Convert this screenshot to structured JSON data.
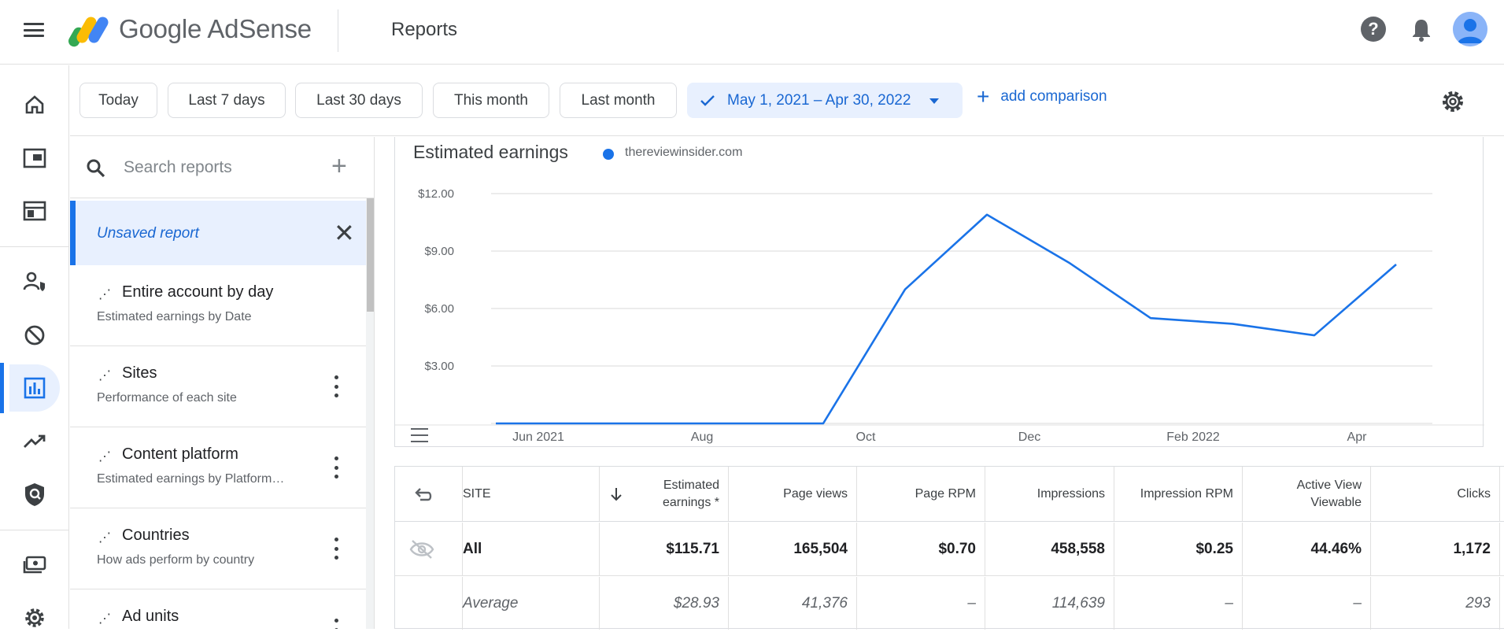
{
  "app": {
    "brand": "Google AdSense",
    "page_title": "Reports"
  },
  "rail": {
    "items": [
      {
        "name": "home-icon"
      },
      {
        "name": "ads-icon"
      },
      {
        "name": "sites-icon"
      },
      {
        "name": "account-access-icon"
      },
      {
        "name": "blocking-controls-icon"
      },
      {
        "name": "reports-icon",
        "active": true
      },
      {
        "name": "optimization-icon"
      },
      {
        "name": "policy-center-icon"
      },
      {
        "name": "payments-icon"
      },
      {
        "name": "settings-icon"
      }
    ]
  },
  "datebar": {
    "chips": [
      "Today",
      "Last 7 days",
      "Last 30 days",
      "This month",
      "Last month"
    ],
    "selected_range": "May 1, 2021 – Apr 30, 2022",
    "add_comparison": "add comparison"
  },
  "reports_panel": {
    "search_placeholder": "Search reports",
    "unsaved": "Unsaved report",
    "items": [
      {
        "title": "Entire account by day",
        "subtitle": "Estimated earnings by Date"
      },
      {
        "title": "Sites",
        "subtitle": "Performance of each site"
      },
      {
        "title": "Content platform",
        "subtitle": "Estimated earnings by Platform…"
      },
      {
        "title": "Countries",
        "subtitle": "How ads perform by country"
      },
      {
        "title": "Ad units",
        "subtitle": ""
      }
    ]
  },
  "chart_data": {
    "type": "line",
    "title": "Estimated earnings",
    "series": [
      {
        "name": "thereviewinsider.com",
        "color": "#1a73e8",
        "values": [
          0,
          0,
          0,
          0,
          0,
          7.0,
          10.9,
          8.4,
          5.5,
          5.2,
          4.6,
          8.3
        ]
      }
    ],
    "x": [
      "May 2021",
      "Jun 2021",
      "Jul 2021",
      "Aug 2021",
      "Sep 2021",
      "Oct 2021",
      "Nov 2021",
      "Dec 2021",
      "Jan 2022",
      "Feb 2022",
      "Mar 2022",
      "Apr 2022"
    ],
    "x_tick_labels": [
      "Jun 2021",
      "Aug",
      "Oct",
      "Dec",
      "Feb 2022",
      "Apr"
    ],
    "y_tick_labels": [
      "$3.00",
      "$6.00",
      "$9.00",
      "$12.00"
    ],
    "ylim": [
      0,
      12
    ],
    "grid": true,
    "legend": "top-left"
  },
  "table": {
    "headers": [
      "SITE",
      "Estimated earnings *",
      "Page views",
      "Page RPM",
      "Impressions",
      "Impression RPM",
      "Active View Viewable",
      "Clicks"
    ],
    "rows": [
      {
        "site": "All",
        "values": [
          "$115.71",
          "165,504",
          "$0.70",
          "458,558",
          "$0.25",
          "44.46%",
          "1,172"
        ]
      },
      {
        "site": "Average",
        "values": [
          "$28.93",
          "41,376",
          "–",
          "114,639",
          "–",
          "–",
          "293"
        ]
      }
    ]
  }
}
